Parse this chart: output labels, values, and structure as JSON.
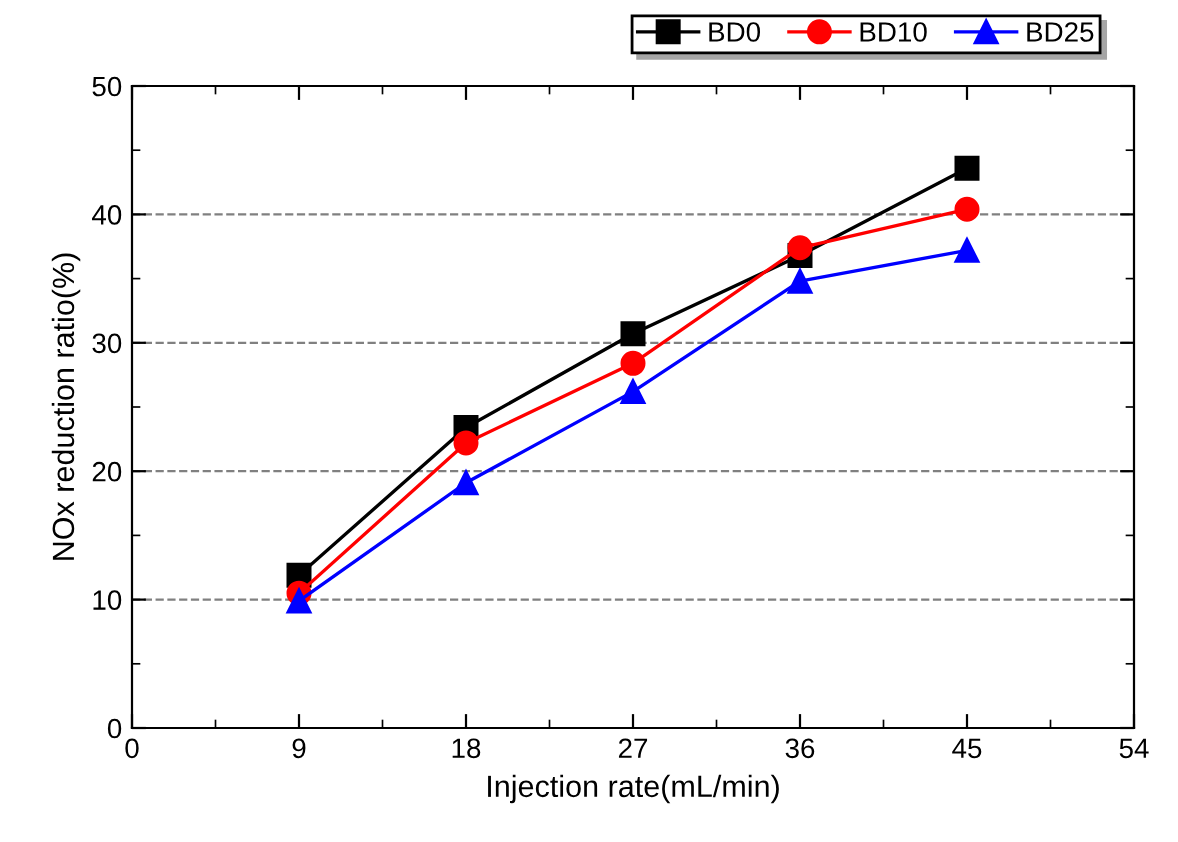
{
  "chart_data": {
    "type": "line",
    "xlabel": "Injection rate(mL/min)",
    "ylabel": "NOx reduction ratio(%)",
    "x": [
      9,
      18,
      27,
      36,
      45
    ],
    "series": [
      {
        "name": "BD0",
        "color": "#000000",
        "marker": "square",
        "values": [
          11.9,
          23.4,
          30.7,
          36.8,
          43.6
        ]
      },
      {
        "name": "BD10",
        "color": "#ff0000",
        "marker": "circle",
        "values": [
          10.5,
          22.2,
          28.4,
          37.4,
          40.4
        ]
      },
      {
        "name": "BD25",
        "color": "#0000ff",
        "marker": "triangle",
        "values": [
          9.9,
          19.1,
          26.2,
          34.8,
          37.2
        ]
      }
    ],
    "xlim": [
      0,
      54
    ],
    "xticks": [
      0,
      9,
      18,
      27,
      36,
      45,
      54
    ],
    "ylim": [
      0,
      50
    ],
    "yticks": [
      0,
      10,
      20,
      30,
      40,
      50
    ],
    "grid": "y",
    "legend": "top right",
    "line_style": "solid"
  }
}
